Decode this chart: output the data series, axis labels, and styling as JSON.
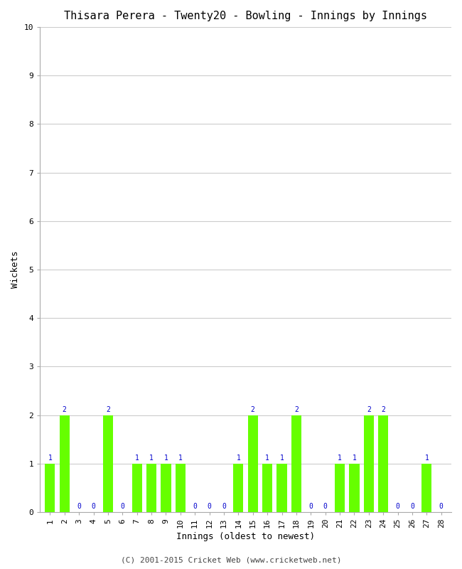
{
  "title": "Thisara Perera - Twenty20 - Bowling - Innings by Innings",
  "xlabel": "Innings (oldest to newest)",
  "ylabel": "Wickets",
  "footnote": "(C) 2001-2015 Cricket Web (www.cricketweb.net)",
  "ylim": [
    0,
    10
  ],
  "yticks": [
    0,
    1,
    2,
    3,
    4,
    5,
    6,
    7,
    8,
    9,
    10
  ],
  "innings": [
    1,
    2,
    3,
    4,
    5,
    6,
    7,
    8,
    9,
    10,
    11,
    12,
    13,
    14,
    15,
    16,
    17,
    18,
    19,
    20,
    21,
    22,
    23,
    24,
    25,
    26,
    27,
    28
  ],
  "wickets": [
    1,
    2,
    0,
    0,
    2,
    0,
    1,
    1,
    1,
    1,
    0,
    0,
    0,
    1,
    2,
    1,
    1,
    2,
    0,
    0,
    1,
    1,
    2,
    2,
    0,
    0,
    1,
    0
  ],
  "bar_color": "#66ff00",
  "label_color": "#0000cc",
  "bg_color": "#ffffff",
  "grid_color": "#cccccc",
  "title_fontsize": 11,
  "axis_label_fontsize": 9,
  "tick_fontsize": 8,
  "bar_label_fontsize": 7,
  "footnote_fontsize": 8
}
